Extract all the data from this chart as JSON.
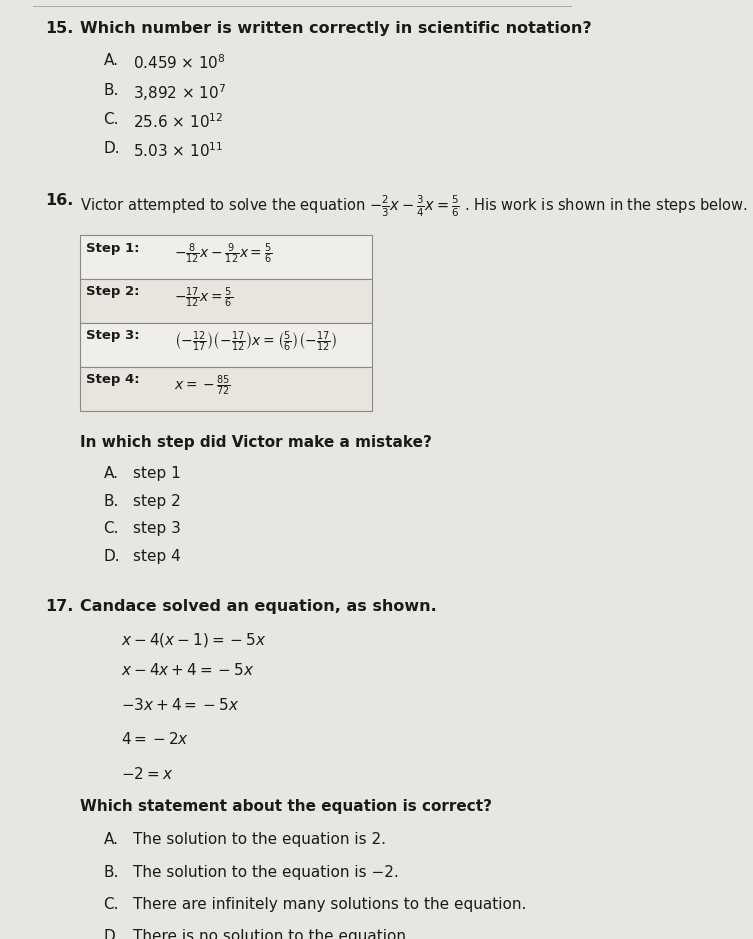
{
  "bg_color": "#e8e6e1",
  "text_color": "#1a1a1a",
  "fig_width": 7.53,
  "fig_height": 9.39,
  "q15": {
    "number": "15.",
    "question": "Which number is written correctly in scientific notation?",
    "options": [
      {
        "label": "A.",
        "text": "0.459 × 10$^{8}$"
      },
      {
        "label": "B.",
        "text": "3,892 × 10$^{7}$"
      },
      {
        "label": "C.",
        "text": "25.6 × 10$^{12}$"
      },
      {
        "label": "D.",
        "text": "5.03 × 10$^{11}$"
      }
    ]
  },
  "q16": {
    "number": "16.",
    "question_math": "Victor attempted to solve the equation $-\\frac{2}{3}x - \\frac{3}{4}x = \\frac{5}{6}$ . His work is shown in the steps below.",
    "steps": [
      {
        "label": "Step 1:",
        "content": "$-\\frac{8}{12}x - \\frac{9}{12}x = \\frac{5}{6}$"
      },
      {
        "label": "Step 2:",
        "content": "$-\\frac{17}{12}x = \\frac{5}{6}$"
      },
      {
        "label": "Step 3:",
        "content": "$\\left(-\\frac{12}{17}\\right)\\left(-\\frac{17}{12}\\right)x = \\left(\\frac{5}{6}\\right)\\left(-\\frac{17}{12}\\right)$"
      },
      {
        "label": "Step 4:",
        "content": "$x = -\\frac{85}{72}$"
      }
    ],
    "sub_question": "In which step did Victor make a mistake?",
    "options": [
      {
        "label": "A.",
        "text": "step 1"
      },
      {
        "label": "B.",
        "text": "step 2"
      },
      {
        "label": "C.",
        "text": "step 3"
      },
      {
        "label": "D.",
        "text": "step 4"
      }
    ]
  },
  "q17": {
    "number": "17.",
    "question": "Candace solved an equation, as shown.",
    "equations": [
      "$x - 4(x-1) = -5x$",
      "$x - 4x + 4 = -5x$",
      "$-3x + 4 = -5x$",
      "$4 = -2x$",
      "$-2 = x$"
    ],
    "sub_question": "Which statement about the equation is correct?",
    "options": [
      {
        "label": "A.",
        "text": "The solution to the equation is 2."
      },
      {
        "label": "B.",
        "text": "The solution to the equation is −2."
      },
      {
        "label": "C.",
        "text": "There are infinitely many solutions to the equation."
      },
      {
        "label": "D.",
        "text": "There is no solution to the equation."
      }
    ]
  }
}
